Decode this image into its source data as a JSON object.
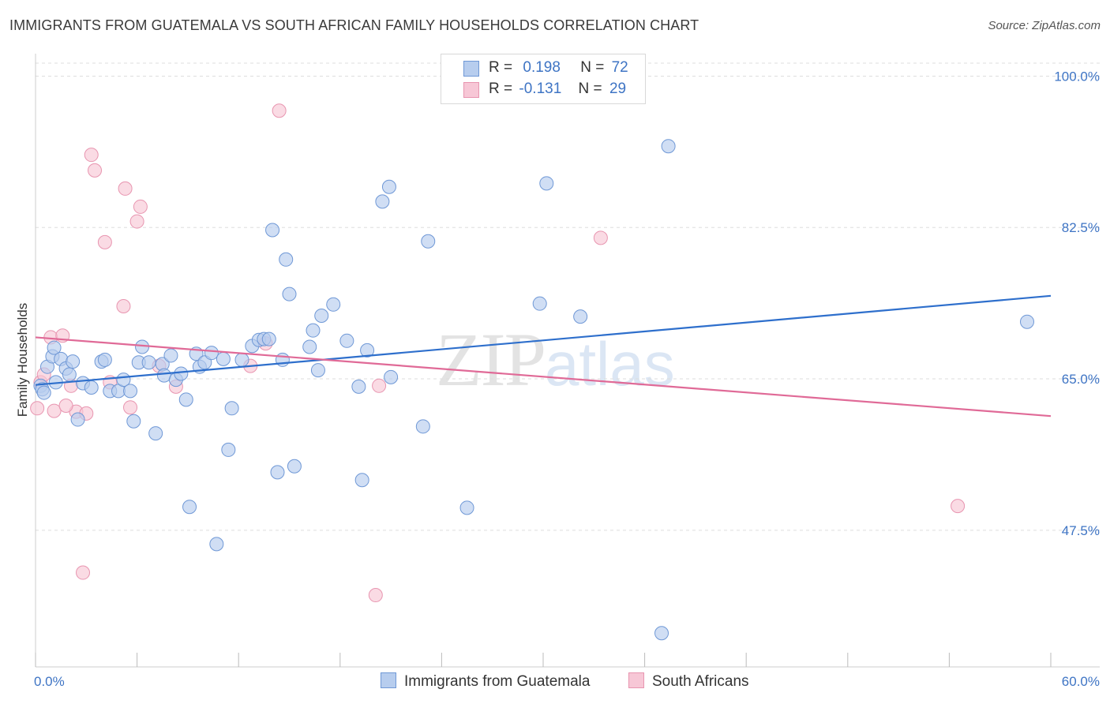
{
  "title": "IMMIGRANTS FROM GUATEMALA VS SOUTH AFRICAN FAMILY HOUSEHOLDS CORRELATION CHART",
  "source": "Source: ZipAtlas.com",
  "watermark": {
    "zip": "ZIP",
    "atlas": "atlas"
  },
  "legend": {
    "r_label": "R =",
    "n_label": "N =",
    "series": [
      {
        "r": "0.198",
        "n": "72"
      },
      {
        "r": "-0.131",
        "n": "29"
      }
    ]
  },
  "bottom_legend": [
    "Immigrants from Guatemala",
    "South Africans"
  ],
  "colors": {
    "blue_fill": "#b7cdee",
    "blue_stroke": "#6f98d6",
    "blue_line": "#2e6fcc",
    "pink_fill": "#f7c7d6",
    "pink_stroke": "#e895b0",
    "pink_line": "#e06a97",
    "tick_text": "#3e74c4",
    "grid": "#dddddd"
  },
  "chart_data": {
    "type": "scatter",
    "title": "IMMIGRANTS FROM GUATEMALA VS SOUTH AFRICAN FAMILY HOUSEHOLDS CORRELATION CHART",
    "xlabel": "",
    "ylabel": "Family Households",
    "xlim": [
      0,
      60
    ],
    "ylim": [
      31.7,
      101.5
    ],
    "x_tick_labels": [
      "0.0%",
      "60.0%"
    ],
    "y_ticks": [
      47.5,
      65.0,
      82.5,
      100.0
    ],
    "y_tick_labels": [
      "47.5%",
      "65.0%",
      "82.5%",
      "100.0%"
    ],
    "grid": true,
    "legend_position": "top-center",
    "series": [
      {
        "name": "Immigrants from Guatemala",
        "r": 0.198,
        "n": 72,
        "trend": [
          [
            0,
            64.3
          ],
          [
            60,
            74.6
          ]
        ],
        "points": [
          [
            0.3,
            64.2
          ],
          [
            0.4,
            63.8
          ],
          [
            0.5,
            63.4
          ],
          [
            0.7,
            66.4
          ],
          [
            1.0,
            67.6
          ],
          [
            1.1,
            68.6
          ],
          [
            1.2,
            64.6
          ],
          [
            1.5,
            67.3
          ],
          [
            1.8,
            66.2
          ],
          [
            2.0,
            65.5
          ],
          [
            2.2,
            67.0
          ],
          [
            2.5,
            60.3
          ],
          [
            2.8,
            64.5
          ],
          [
            3.3,
            64.0
          ],
          [
            3.9,
            67.0
          ],
          [
            4.1,
            67.2
          ],
          [
            4.4,
            63.6
          ],
          [
            4.9,
            63.6
          ],
          [
            5.2,
            64.9
          ],
          [
            5.6,
            63.6
          ],
          [
            5.8,
            60.1
          ],
          [
            6.1,
            66.9
          ],
          [
            6.3,
            68.7
          ],
          [
            6.7,
            66.9
          ],
          [
            7.1,
            58.7
          ],
          [
            7.5,
            66.7
          ],
          [
            7.6,
            65.4
          ],
          [
            8.0,
            67.7
          ],
          [
            8.3,
            64.9
          ],
          [
            8.6,
            65.6
          ],
          [
            8.9,
            62.6
          ],
          [
            9.1,
            50.2
          ],
          [
            9.5,
            67.9
          ],
          [
            9.7,
            66.4
          ],
          [
            10.0,
            66.9
          ],
          [
            10.4,
            68.0
          ],
          [
            10.7,
            45.9
          ],
          [
            11.1,
            67.3
          ],
          [
            11.4,
            56.8
          ],
          [
            11.6,
            61.6
          ],
          [
            12.2,
            67.2
          ],
          [
            12.8,
            68.8
          ],
          [
            13.2,
            69.5
          ],
          [
            13.5,
            69.6
          ],
          [
            13.8,
            69.6
          ],
          [
            14.0,
            82.2
          ],
          [
            14.3,
            54.2
          ],
          [
            14.6,
            67.2
          ],
          [
            14.8,
            78.8
          ],
          [
            15.0,
            74.8
          ],
          [
            15.3,
            54.9
          ],
          [
            16.2,
            68.7
          ],
          [
            16.4,
            70.6
          ],
          [
            16.7,
            66.0
          ],
          [
            16.9,
            72.3
          ],
          [
            17.6,
            73.6
          ],
          [
            18.4,
            69.4
          ],
          [
            19.1,
            64.1
          ],
          [
            19.3,
            53.3
          ],
          [
            19.6,
            68.3
          ],
          [
            20.5,
            85.5
          ],
          [
            20.9,
            87.2
          ],
          [
            21.0,
            65.2
          ],
          [
            22.9,
            59.5
          ],
          [
            23.2,
            80.9
          ],
          [
            25.5,
            50.1
          ],
          [
            29.8,
            73.7
          ],
          [
            30.2,
            87.6
          ],
          [
            32.2,
            72.2
          ],
          [
            37.0,
            35.6
          ],
          [
            37.4,
            91.9
          ],
          [
            58.6,
            71.6
          ]
        ]
      },
      {
        "name": "South Africans",
        "r": -0.131,
        "n": 29,
        "trend": [
          [
            0,
            69.8
          ],
          [
            60,
            60.7
          ]
        ],
        "points": [
          [
            0.1,
            61.6
          ],
          [
            0.3,
            64.6
          ],
          [
            0.5,
            65.5
          ],
          [
            0.9,
            69.8
          ],
          [
            1.1,
            61.3
          ],
          [
            1.6,
            70.0
          ],
          [
            2.1,
            64.2
          ],
          [
            2.4,
            61.2
          ],
          [
            2.8,
            42.6
          ],
          [
            3.0,
            61.0
          ],
          [
            3.3,
            90.9
          ],
          [
            3.5,
            89.1
          ],
          [
            4.1,
            80.8
          ],
          [
            4.4,
            64.6
          ],
          [
            5.2,
            73.4
          ],
          [
            5.3,
            87.0
          ],
          [
            5.6,
            61.7
          ],
          [
            6.0,
            83.2
          ],
          [
            6.2,
            84.9
          ],
          [
            7.3,
            66.5
          ],
          [
            8.3,
            64.1
          ],
          [
            12.7,
            66.5
          ],
          [
            13.6,
            69.1
          ],
          [
            14.4,
            96.0
          ],
          [
            20.1,
            40.0
          ],
          [
            20.3,
            64.2
          ],
          [
            33.4,
            81.3
          ],
          [
            54.5,
            50.3
          ],
          [
            1.8,
            61.9
          ]
        ]
      }
    ]
  }
}
